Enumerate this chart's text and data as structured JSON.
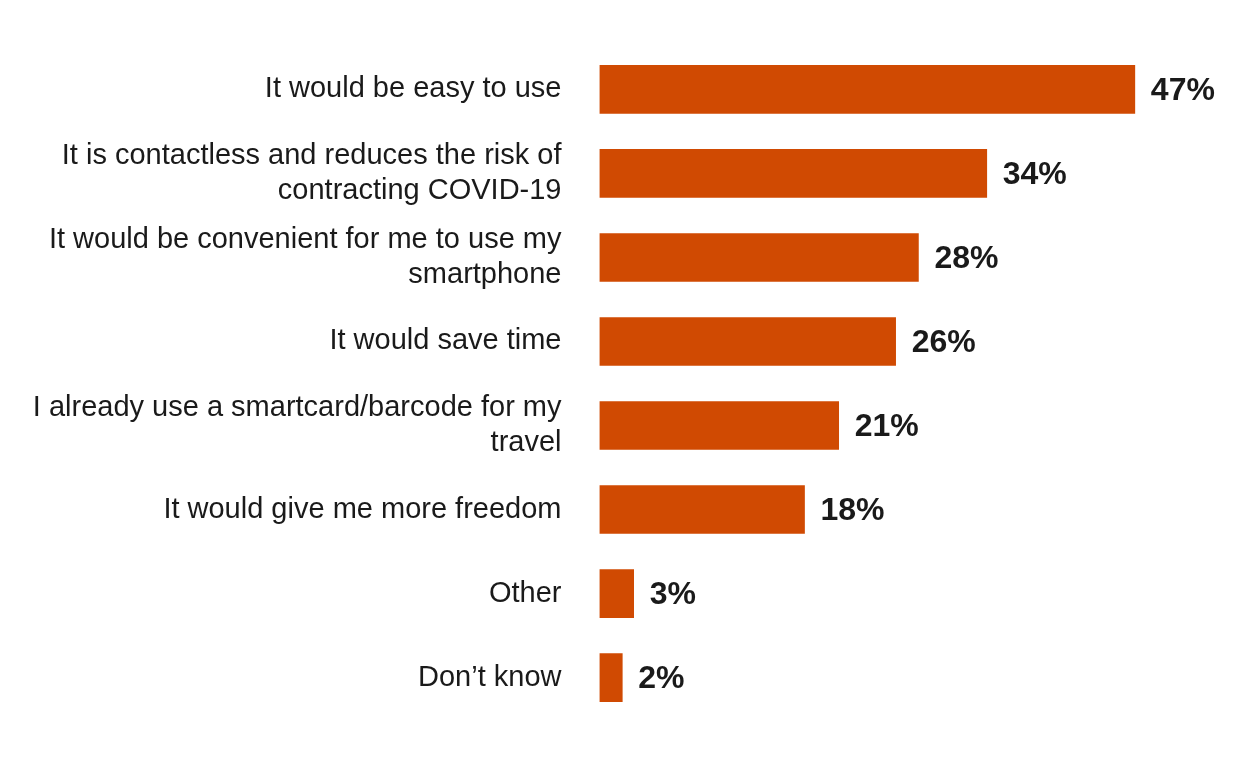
{
  "chart_data": {
    "type": "bar",
    "orientation": "horizontal",
    "tick_labels": "y",
    "categories": [
      "It would be easy to use",
      "It is contactless and reduces the risk of contracting COVID-19",
      "It would be convenient for me to use my smartphone",
      "It would save time",
      "I already use a smartcard/barcode for my travel",
      "It would give me more freedom",
      "Other",
      "Don’t know"
    ],
    "values": [
      47,
      34,
      28,
      26,
      21,
      18,
      3,
      2
    ],
    "value_labels": [
      "47%",
      "34%",
      "28%",
      "26%",
      "21%",
      "18%",
      "3%",
      "2%"
    ],
    "color": "#d04a02",
    "grid": false,
    "legend": false
  }
}
